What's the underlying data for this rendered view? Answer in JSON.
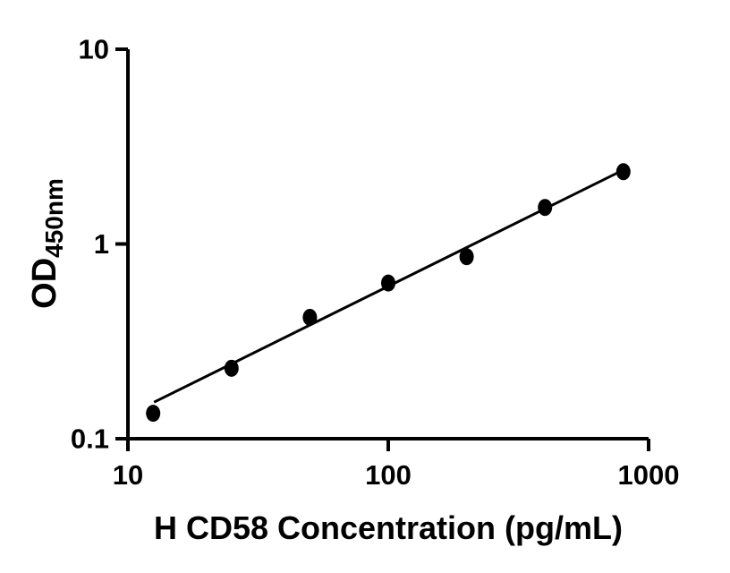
{
  "figure": {
    "background": "#ffffff",
    "axis_color": "#000000",
    "marker_color": "#000000",
    "line_color": "#000000"
  },
  "chart_data": {
    "type": "scatter",
    "title": "",
    "xlabel": "H CD58 Concentration (pg/mL)",
    "ylabel": "OD",
    "ylabel_subscript": "450nm",
    "x_scale": "log",
    "y_scale": "log",
    "xlim": [
      10,
      1000
    ],
    "ylim": [
      0.1,
      10
    ],
    "x_ticks": [
      10,
      100,
      1000
    ],
    "x_tick_labels": [
      "10",
      "100",
      "1000"
    ],
    "y_ticks": [
      0.1,
      1,
      10
    ],
    "y_tick_labels": [
      "0.1",
      "1",
      "10"
    ],
    "grid": false,
    "legend": false,
    "series": [
      {
        "name": "standard-points",
        "type": "scatter",
        "x": [
          12.5,
          25,
          50,
          100,
          200,
          400,
          800
        ],
        "y": [
          0.135,
          0.23,
          0.42,
          0.63,
          0.86,
          1.54,
          2.35
        ]
      },
      {
        "name": "fit-line",
        "type": "line",
        "x": [
          12.6,
          800
        ],
        "y": [
          0.154,
          2.4
        ]
      }
    ]
  }
}
